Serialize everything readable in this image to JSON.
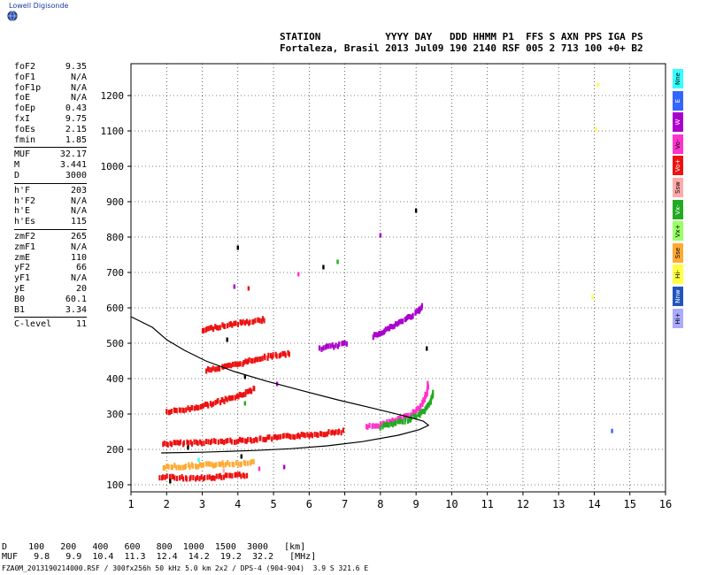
{
  "brand": {
    "text": "Lowell Digisonde"
  },
  "header": {
    "line1": "STATION           YYYY DAY   DDD HHMM P1  FFS S AXN PPS IGA PS",
    "line2": "Fortaleza, Brasil 2013 Jul09 190 2140 RSF 005 2 713 100 +0+ B2"
  },
  "params": {
    "group1": [
      {
        "k": "foF2",
        "v": "9.35"
      },
      {
        "k": "foF1",
        "v": "N/A"
      },
      {
        "k": "foF1p",
        "v": "N/A"
      },
      {
        "k": "foE",
        "v": "N/A"
      },
      {
        "k": "foEp",
        "v": "0.43"
      },
      {
        "k": "fxI",
        "v": "9.75"
      },
      {
        "k": "foEs",
        "v": "2.15"
      },
      {
        "k": "fmin",
        "v": "1.85"
      }
    ],
    "group2": [
      {
        "k": "MUF",
        "v": "32.17"
      },
      {
        "k": "M",
        "v": "3.441"
      },
      {
        "k": "D",
        "v": "3000"
      }
    ],
    "group3": [
      {
        "k": "h'F",
        "v": "203"
      },
      {
        "k": "h'F2",
        "v": "N/A"
      },
      {
        "k": "h'E",
        "v": "N/A"
      },
      {
        "k": "h'Es",
        "v": "115"
      }
    ],
    "group4": [
      {
        "k": "zmF2",
        "v": "265"
      },
      {
        "k": "zmF1",
        "v": "N/A"
      },
      {
        "k": "zmE",
        "v": "110"
      },
      {
        "k": "yF2",
        "v": "66"
      },
      {
        "k": "yF1",
        "v": "N/A"
      },
      {
        "k": "yE",
        "v": "20"
      },
      {
        "k": "B0",
        "v": "60.1"
      },
      {
        "k": "B1",
        "v": "3.34"
      }
    ],
    "group5": [
      {
        "k": "C-level",
        "v": "11"
      }
    ]
  },
  "legend": [
    {
      "label": "Nne",
      "color": "#33ffff"
    },
    {
      "label": "E",
      "color": "#3366ff"
    },
    {
      "label": "W",
      "color": "#aa00cc"
    },
    {
      "label": "Vo-",
      "color": "#ff33cc"
    },
    {
      "label": "Vo+",
      "color": "#ee1111"
    },
    {
      "label": "Ssw",
      "color": "#ffaaaa"
    },
    {
      "label": "Vx-",
      "color": "#22aa22"
    },
    {
      "label": "Vx+",
      "color": "#99ff66"
    },
    {
      "label": "Sse",
      "color": "#ffaa33"
    },
    {
      "label": "Hi-",
      "color": "#ffff44"
    },
    {
      "label": "Nnw",
      "color": "#2255bb"
    },
    {
      "label": "Hi+",
      "color": "#aaaaff"
    }
  ],
  "bottom": {
    "line1": "D    100   200   400   600   800  1000  1500  3000   [km]",
    "line2": "MUF   9.8   9.9  10.4  11.3  12.4  14.2  19.2  32.2   [MHz]"
  },
  "footer": {
    "text": "FZA0M_2013190214000.RSF / 300fx256h 50 kHz 5.0 km 2x2 / DPS-4 (904-904)  3.9 S 321.6 E"
  },
  "chart_data": {
    "type": "scatter",
    "xlim": [
      1,
      16
    ],
    "ylim": [
      80,
      1290
    ],
    "xticks": [
      1,
      2,
      3,
      4,
      5,
      6,
      7,
      8,
      9,
      10,
      11,
      12,
      13,
      14,
      15,
      16
    ],
    "yticks": [
      100,
      200,
      300,
      400,
      500,
      600,
      700,
      800,
      900,
      1000,
      1100,
      1200
    ],
    "grid": true,
    "profile": [
      [
        1.85,
        190
      ],
      [
        3,
        192
      ],
      [
        4.5,
        197
      ],
      [
        5.5,
        202
      ],
      [
        6.5,
        210
      ],
      [
        7.5,
        222
      ],
      [
        8.5,
        240
      ],
      [
        9.1,
        256
      ],
      [
        9.35,
        268
      ],
      [
        9.2,
        280
      ],
      [
        8.7,
        294
      ],
      [
        7.8,
        316
      ],
      [
        6.8,
        340
      ],
      [
        5.8,
        366
      ],
      [
        4.8,
        393
      ],
      [
        3.9,
        420
      ],
      [
        3.1,
        450
      ],
      [
        2.5,
        480
      ],
      [
        2.0,
        510
      ],
      [
        1.6,
        545
      ],
      [
        1.0,
        575
      ]
    ],
    "traces": [
      {
        "color": "#ee1111",
        "pts": [
          [
            1.9,
            215
          ],
          [
            2.5,
            218
          ],
          [
            3.0,
            220
          ],
          [
            3.5,
            222
          ],
          [
            4.0,
            224
          ],
          [
            4.5,
            228
          ],
          [
            5.0,
            232
          ],
          [
            5.5,
            237
          ],
          [
            6.0,
            241
          ],
          [
            6.5,
            246
          ],
          [
            7.0,
            252
          ]
        ]
      },
      {
        "color": "#ff33cc",
        "pts": [
          [
            7.6,
            262
          ],
          [
            8.0,
            270
          ],
          [
            8.3,
            278
          ],
          [
            8.6,
            288
          ],
          [
            8.9,
            302
          ],
          [
            9.1,
            318
          ],
          [
            9.2,
            335
          ],
          [
            9.3,
            360
          ],
          [
            9.35,
            390
          ]
        ]
      },
      {
        "color": "#22aa22",
        "pts": [
          [
            8.0,
            264
          ],
          [
            8.4,
            272
          ],
          [
            8.8,
            285
          ],
          [
            9.1,
            298
          ],
          [
            9.3,
            315
          ],
          [
            9.4,
            335
          ],
          [
            9.5,
            365
          ]
        ]
      },
      {
        "color": "#ee1111",
        "pts": [
          [
            2.0,
            305
          ],
          [
            2.5,
            312
          ],
          [
            3.0,
            322
          ],
          [
            3.5,
            335
          ],
          [
            4.0,
            350
          ],
          [
            4.5,
            372
          ]
        ]
      },
      {
        "color": "#ee1111",
        "pts": [
          [
            3.1,
            425
          ],
          [
            3.5,
            430
          ],
          [
            4.0,
            440
          ],
          [
            4.5,
            455
          ],
          [
            5.0,
            465
          ],
          [
            5.5,
            470
          ]
        ]
      },
      {
        "color": "#aa00cc",
        "pts": [
          [
            6.3,
            485
          ],
          [
            6.7,
            492
          ],
          [
            7.1,
            500
          ]
        ]
      },
      {
        "color": "#aa00cc",
        "pts": [
          [
            7.8,
            520
          ],
          [
            8.2,
            540
          ],
          [
            8.6,
            562
          ],
          [
            9.0,
            585
          ],
          [
            9.2,
            605
          ]
        ]
      },
      {
        "color": "#ee1111",
        "pts": [
          [
            3.0,
            535
          ],
          [
            3.5,
            548
          ],
          [
            4.0,
            556
          ],
          [
            4.5,
            562
          ],
          [
            4.8,
            568
          ]
        ]
      },
      {
        "color": "#ffaa33",
        "pts": [
          [
            1.9,
            150
          ],
          [
            2.5,
            152
          ],
          [
            3.0,
            155
          ],
          [
            3.5,
            158
          ],
          [
            4.0,
            160
          ],
          [
            4.5,
            162
          ]
        ]
      },
      {
        "color": "#ee1111",
        "pts": [
          [
            1.8,
            122
          ],
          [
            2.3,
            120
          ],
          [
            2.8,
            118
          ],
          [
            3.3,
            120
          ],
          [
            3.8,
            125
          ],
          [
            4.3,
            128
          ]
        ]
      }
    ],
    "scatter_points": [
      {
        "color": "#000000",
        "x": 4.0,
        "y": 770
      },
      {
        "color": "#000000",
        "x": 6.4,
        "y": 715
      },
      {
        "color": "#000000",
        "x": 9.0,
        "y": 875
      },
      {
        "color": "#000000",
        "x": 9.3,
        "y": 485
      },
      {
        "color": "#ffff44",
        "x": 14.1,
        "y": 1230
      },
      {
        "color": "#ffff44",
        "x": 14.05,
        "y": 1105
      },
      {
        "color": "#ffff44",
        "x": 13.95,
        "y": 630
      },
      {
        "color": "#3366ff",
        "x": 14.5,
        "y": 252
      },
      {
        "color": "#22aa22",
        "x": 6.8,
        "y": 730
      },
      {
        "color": "#aa00cc",
        "x": 8.0,
        "y": 805
      },
      {
        "color": "#ff33cc",
        "x": 5.7,
        "y": 695
      },
      {
        "color": "#aa00cc",
        "x": 3.9,
        "y": 660
      },
      {
        "color": "#ee1111",
        "x": 4.3,
        "y": 655
      },
      {
        "color": "#22aa22",
        "x": 4.2,
        "y": 330
      },
      {
        "color": "#000000",
        "x": 3.7,
        "y": 510
      },
      {
        "color": "#000000",
        "x": 4.2,
        "y": 405
      },
      {
        "color": "#aa00cc",
        "x": 5.1,
        "y": 385
      },
      {
        "color": "#000000",
        "x": 2.6,
        "y": 205
      },
      {
        "color": "#33ffff",
        "x": 2.9,
        "y": 170
      },
      {
        "color": "#ffaaaa",
        "x": 3.6,
        "y": 140
      },
      {
        "color": "#000000",
        "x": 4.1,
        "y": 180
      },
      {
        "color": "#ff33cc",
        "x": 4.6,
        "y": 145
      },
      {
        "color": "#aa00cc",
        "x": 5.3,
        "y": 150
      },
      {
        "color": "#000000",
        "x": 2.1,
        "y": 110
      }
    ]
  }
}
